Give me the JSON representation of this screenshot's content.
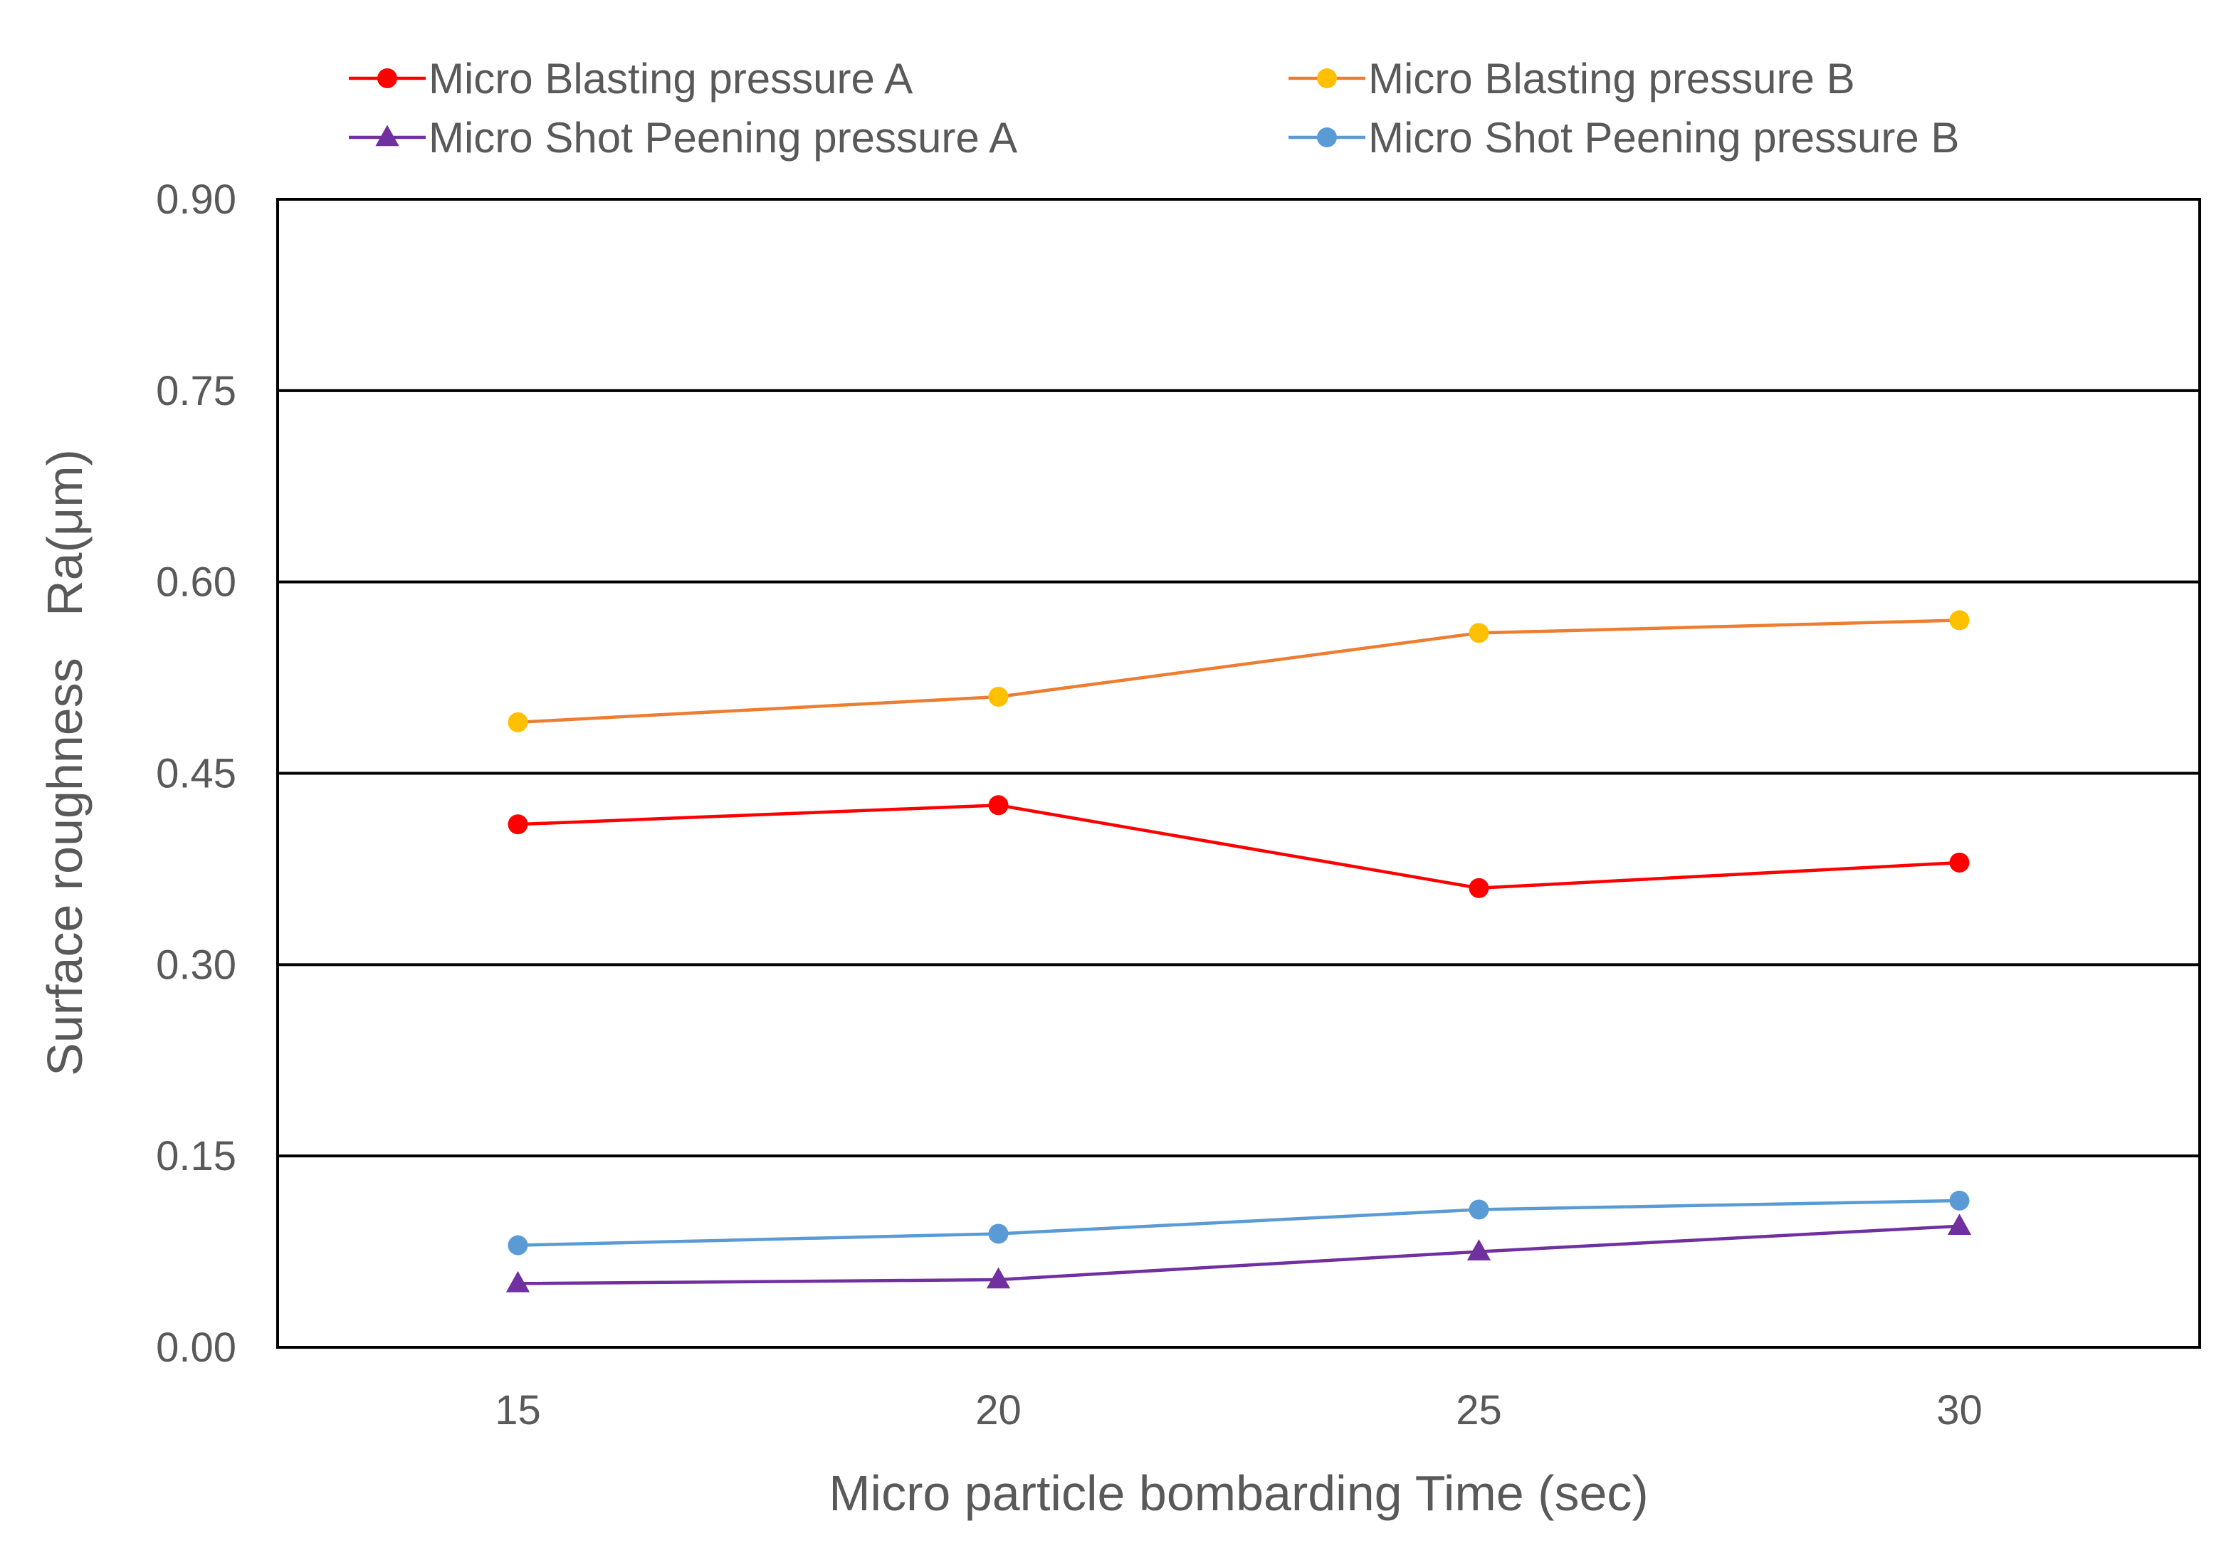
{
  "chart_data": {
    "type": "line",
    "title": "",
    "xlabel": "Micro particle bombarding Time (sec)",
    "ylabel": "Surface roughness   Ra(μm)",
    "x": [
      15,
      20,
      25,
      30
    ],
    "x_tick_labels": [
      "15",
      "20",
      "25",
      "30"
    ],
    "xlim": [
      12.5,
      32.5
    ],
    "ylim": [
      0,
      0.9
    ],
    "y_ticks": [
      0,
      0.15,
      0.3,
      0.45,
      0.6,
      0.75,
      0.9
    ],
    "y_tick_labels": [
      "0.00",
      "0.15",
      "0.30",
      "0.45",
      "0.60",
      "0.75",
      "0.90"
    ],
    "grid": "horizontal",
    "legend_position": "top",
    "series": [
      {
        "name": "Micro Blasting  pressure A",
        "values": [
          0.41,
          0.425,
          0.36,
          0.38
        ],
        "line_color": "#ff0000",
        "marker_color": "#ff0000",
        "marker": "circle"
      },
      {
        "name": "Micro Blasting  pressure B",
        "values": [
          0.49,
          0.51,
          0.56,
          0.57
        ],
        "line_color": "#ed7d31",
        "marker_color": "#ffc000",
        "marker": "circle"
      },
      {
        "name": "Micro Shot Peening pressure A",
        "values": [
          0.05,
          0.053,
          0.075,
          0.095
        ],
        "line_color": "#7030a0",
        "marker_color": "#7030a0",
        "marker": "triangle"
      },
      {
        "name": "Micro Shot Peening pressure B",
        "values": [
          0.08,
          0.089,
          0.108,
          0.115
        ],
        "line_color": "#5b9bd5",
        "marker_color": "#5b9bd5",
        "marker": "circle"
      }
    ]
  }
}
